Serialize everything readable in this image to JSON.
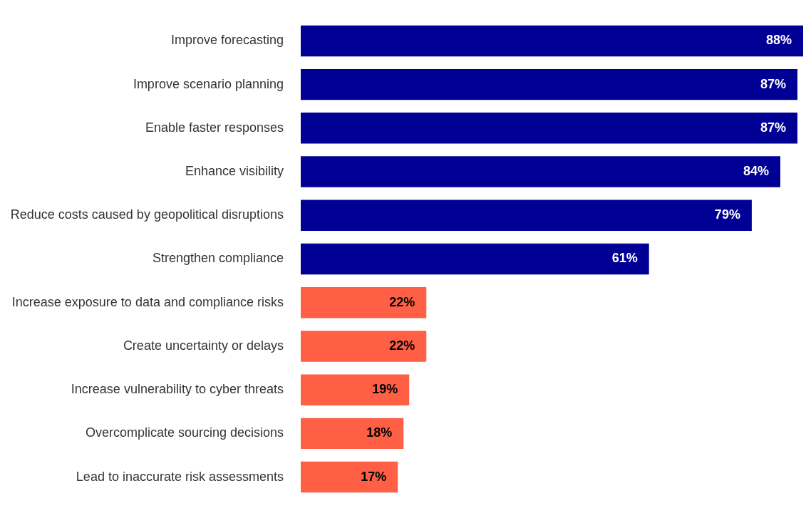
{
  "chart_data": {
    "type": "bar",
    "orientation": "horizontal",
    "categories": [
      "Improve forecasting",
      "Improve scenario planning",
      "Enable faster responses",
      "Enhance visibility",
      "Reduce costs caused by geopolitical disruptions",
      "Strengthen compliance",
      "Increase exposure to data and compliance risks",
      "Create uncertainty or delays",
      "Increase vulnerability to cyber threats",
      "Overcomplicate sourcing decisions",
      "Lead to inaccurate risk assessments"
    ],
    "values": [
      88,
      87,
      87,
      84,
      79,
      61,
      22,
      22,
      19,
      18,
      17
    ],
    "colors": [
      "#000094",
      "#000094",
      "#000094",
      "#000094",
      "#000094",
      "#000094",
      "#ff5f45",
      "#ff5f45",
      "#ff5f45",
      "#ff5f45",
      "#ff5f45"
    ],
    "value_labels": [
      "88%",
      "87%",
      "87%",
      "84%",
      "79%",
      "61%",
      "22%",
      "22%",
      "19%",
      "18%",
      "17%"
    ],
    "xlim": [
      0,
      88
    ],
    "legend": false,
    "tick_labels": "y"
  }
}
